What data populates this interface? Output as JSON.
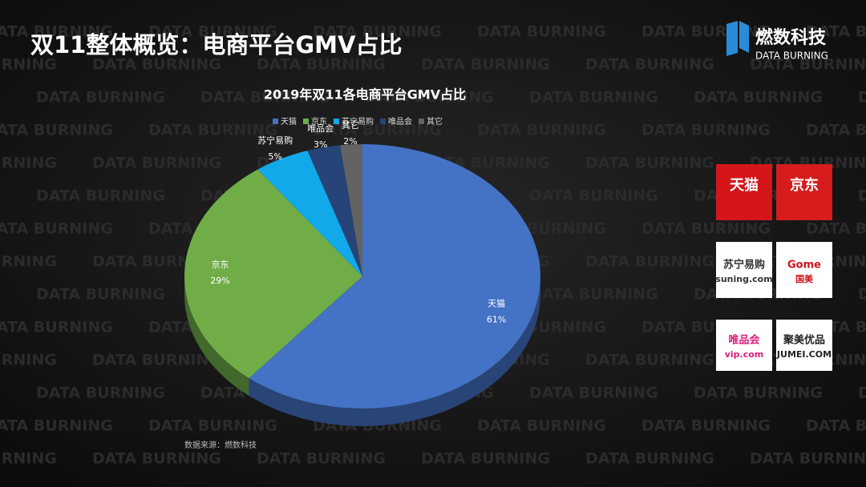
{
  "header": {
    "title": "双11整体概览：电商平台GMV占比"
  },
  "brand": {
    "name": "燃数科技",
    "subtitle": "DATA BURNING"
  },
  "watermark": "DATA BURNING",
  "chart_data": {
    "type": "pie",
    "title": "2019年双11各电商平台GMV占比",
    "categories": [
      "天猫",
      "京东",
      "苏宁易购",
      "唯品会",
      "其它"
    ],
    "values": [
      61,
      29,
      5,
      3,
      2
    ],
    "value_labels": [
      "61%",
      "29%",
      "5%",
      "3%",
      "2%"
    ],
    "colors": [
      "#4472c4",
      "#70ad47",
      "#12a9ea",
      "#264478",
      "#636363"
    ],
    "legend": "top"
  },
  "source": "数据来源：燃数科技",
  "logos": [
    {
      "line1": "天猫",
      "line2": ""
    },
    {
      "line1": "京东",
      "line2": ""
    },
    {
      "line1": "苏宁易购",
      "line2": "suning.com"
    },
    {
      "line1": "Gome",
      "line2": "国美"
    },
    {
      "line1": "唯品会",
      "line2": "vip.com"
    },
    {
      "line1": "聚美优品",
      "line2": "JUMEI.COM"
    }
  ]
}
